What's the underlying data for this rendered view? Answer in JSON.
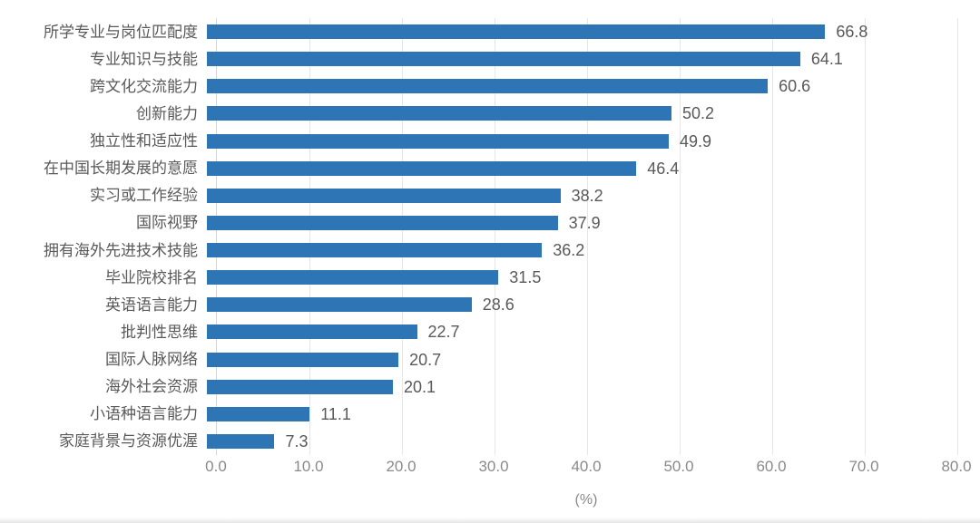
{
  "chart_data": {
    "type": "bar",
    "orientation": "horizontal",
    "title": "",
    "xlabel": "(%)",
    "ylabel": "",
    "xlim": [
      0,
      80
    ],
    "xtick_step": 10,
    "xticks": [
      "0.0",
      "10.0",
      "20.0",
      "30.0",
      "40.0",
      "50.0",
      "60.0",
      "70.0",
      "80.0"
    ],
    "grid": true,
    "legend": "none",
    "bar_color": "#2e75b6",
    "categories": [
      "所学专业与岗位匹配度",
      "专业知识与技能",
      "跨文化交流能力",
      "创新能力",
      "独立性和适应性",
      "在中国长期发展的意愿",
      "实习或工作经验",
      "国际视野",
      "拥有海外先进技术技能",
      "毕业院校排名",
      "英语语言能力",
      "批判性思维",
      "国际人脉网络",
      "海外社会资源",
      "小语种语言能力",
      "家庭背景与资源优渥"
    ],
    "values": [
      66.8,
      64.1,
      60.6,
      50.2,
      49.9,
      46.4,
      38.2,
      37.9,
      36.2,
      31.5,
      28.6,
      22.7,
      20.7,
      20.1,
      11.1,
      7.3
    ],
    "value_labels": [
      "66.8",
      "64.1",
      "60.6",
      "50.2",
      "49.9",
      "46.4",
      "38.2",
      "37.9",
      "36.2",
      "31.5",
      "28.6",
      "22.7",
      "20.7",
      "20.1",
      "11.1",
      "7.3"
    ]
  }
}
